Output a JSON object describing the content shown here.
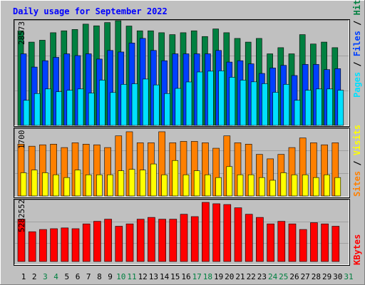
{
  "title": "Daily usage for September 2022",
  "colors": {
    "background": "#c0c0c0",
    "title": "#0000ff",
    "hits": "#008040",
    "files": "#0040ff",
    "pages": "#00e0ff",
    "visits": "#ffff00",
    "sites": "#ff8000",
    "kbytes": "#ff0000",
    "weekend_day": "#008040",
    "weekday": "#000000"
  },
  "chart_data": [
    {
      "type": "bar",
      "categories": [
        "1",
        "2",
        "3",
        "4",
        "5",
        "6",
        "7",
        "8",
        "9",
        "10",
        "11",
        "12",
        "13",
        "14",
        "15",
        "16",
        "17",
        "18",
        "19",
        "20",
        "21",
        "22",
        "23",
        "24",
        "25",
        "26",
        "27",
        "28",
        "29",
        "30",
        "31"
      ],
      "weekend_days": [
        "3",
        "4",
        "10",
        "11",
        "17",
        "18",
        "24",
        "25",
        "31"
      ],
      "y_tick_label": "28573",
      "ylim": [
        0,
        28573
      ],
      "right_axis_labels": [
        {
          "text": "Hits",
          "color": "#008040"
        },
        {
          "text": "Files",
          "color": "#0040ff"
        },
        {
          "text": "Pages",
          "color": "#00e0ff"
        }
      ],
      "series": [
        {
          "name": "Hits",
          "color": "#008040",
          "values": [
            25810,
            22730,
            23240,
            25290,
            25810,
            26170,
            27630,
            27170,
            28060,
            28573,
            27110,
            25810,
            25810,
            25290,
            24770,
            25290,
            25810,
            24250,
            26320,
            25290,
            23730,
            22730,
            23730,
            19530,
            21210,
            19530,
            24770,
            22210,
            22730,
            21210,
            null
          ]
        },
        {
          "name": "Files",
          "color": "#0040ff",
          "values": [
            19530,
            15920,
            17650,
            18570,
            19530,
            19050,
            19530,
            18100,
            20450,
            20030,
            22480,
            23740,
            20450,
            17650,
            19530,
            19530,
            19530,
            19530,
            20450,
            17280,
            17650,
            16800,
            14180,
            15660,
            16380,
            13610,
            16640,
            16640,
            15230,
            15480,
            null
          ]
        },
        {
          "name": "Pages",
          "color": "#00e0ff",
          "values": [
            6850,
            8700,
            9950,
            9190,
            9590,
            9950,
            8830,
            12350,
            8990,
            11200,
            11360,
            12650,
            11050,
            8700,
            10100,
            11860,
            14580,
            14800,
            14890,
            13140,
            12350,
            11890,
            11390,
            9030,
            11200,
            6850,
            9590,
            9950,
            9950,
            9590,
            null
          ]
        }
      ]
    },
    {
      "type": "bar",
      "categories": [
        "1",
        "2",
        "3",
        "4",
        "5",
        "6",
        "7",
        "8",
        "9",
        "10",
        "11",
        "12",
        "13",
        "14",
        "15",
        "16",
        "17",
        "18",
        "19",
        "20",
        "21",
        "22",
        "23",
        "24",
        "25",
        "26",
        "27",
        "28",
        "29",
        "30",
        "31"
      ],
      "y_tick_label": "1700",
      "ylim": [
        0,
        1700
      ],
      "right_axis_labels": [
        {
          "text": "Sites",
          "color": "#ff8000"
        },
        {
          "text": "Visits",
          "color": "#ffff00"
        }
      ],
      "series": [
        {
          "name": "Sites",
          "color": "#ff8000",
          "values": [
            1315,
            1263,
            1298,
            1315,
            1228,
            1350,
            1315,
            1298,
            1228,
            1525,
            1629,
            1350,
            1350,
            1629,
            1350,
            1385,
            1385,
            1350,
            1211,
            1525,
            1350,
            1315,
            1055,
            942,
            1055,
            1228,
            1472,
            1350,
            1298,
            1350,
            null
          ]
        },
        {
          "name": "Visits",
          "color": "#ffff00",
          "values": [
            588,
            658,
            588,
            537,
            467,
            658,
            537,
            537,
            537,
            640,
            675,
            658,
            812,
            537,
            900,
            537,
            640,
            537,
            467,
            745,
            537,
            537,
            467,
            398,
            588,
            537,
            537,
            467,
            537,
            467,
            null
          ]
        }
      ]
    },
    {
      "type": "bar",
      "categories": [
        "1",
        "2",
        "3",
        "4",
        "5",
        "6",
        "7",
        "8",
        "9",
        "10",
        "11",
        "12",
        "13",
        "14",
        "15",
        "16",
        "17",
        "18",
        "19",
        "20",
        "21",
        "22",
        "23",
        "24",
        "25",
        "26",
        "27",
        "28",
        "29",
        "30",
        "31"
      ],
      "y_tick_label": "5282552",
      "ylim": [
        0,
        5282552
      ],
      "right_axis_labels": [
        {
          "text": "KBytes",
          "color": "#ff0000"
        }
      ],
      "series": [
        {
          "name": "KBytes",
          "color": "#ff0000",
          "values": [
            3780000,
            2660000,
            2860000,
            2930000,
            3000000,
            2930000,
            3360000,
            3590000,
            3780000,
            3150000,
            3360000,
            3780000,
            3940000,
            3780000,
            3780000,
            4220000,
            4010000,
            5282552,
            5160000,
            5090000,
            4800000,
            4220000,
            3940000,
            3360000,
            3590000,
            3360000,
            2860000,
            3470000,
            3360000,
            3150000,
            null
          ]
        }
      ]
    }
  ]
}
